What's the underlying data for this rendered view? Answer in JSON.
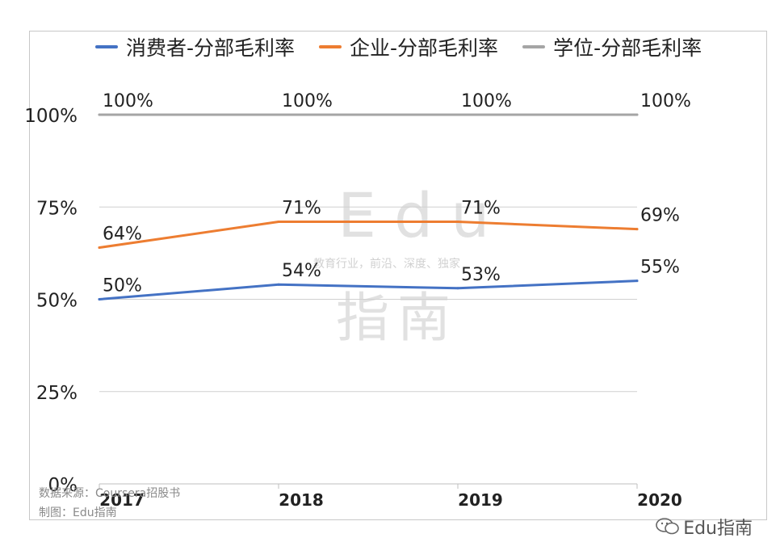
{
  "chart_data": {
    "type": "line",
    "categories": [
      "2017",
      "2018",
      "2019",
      "2020"
    ],
    "series": [
      {
        "name": "消费者-分部毛利率",
        "color": "#4472c4",
        "values": [
          50,
          54,
          53,
          55
        ],
        "labels": [
          "50%",
          "54%",
          "53%",
          "55%"
        ]
      },
      {
        "name": "企业-分部毛利率",
        "color": "#ed7d31",
        "values": [
          64,
          71,
          71,
          69
        ],
        "labels": [
          "64%",
          "71%",
          "71%",
          "69%"
        ]
      },
      {
        "name": "学位-分部毛利率",
        "color": "#a5a5a5",
        "values": [
          100,
          100,
          100,
          100
        ],
        "labels": [
          "100%",
          "100%",
          "100%",
          "100%"
        ]
      }
    ],
    "yticks": [
      "0%",
      "25%",
      "50%",
      "75%",
      "100%"
    ],
    "ylim": [
      0,
      100
    ],
    "grid": true,
    "legend_position": "top"
  },
  "notes": {
    "source": "数据来源：Coursera招股书",
    "maker": "制图：Edu指南"
  },
  "watermark": {
    "title": "Edu",
    "tagline": "教育行业，前沿、深度、独家",
    "subtitle": "指南"
  },
  "brand": {
    "label": "Edu指南",
    "icon": "wechat-icon"
  }
}
